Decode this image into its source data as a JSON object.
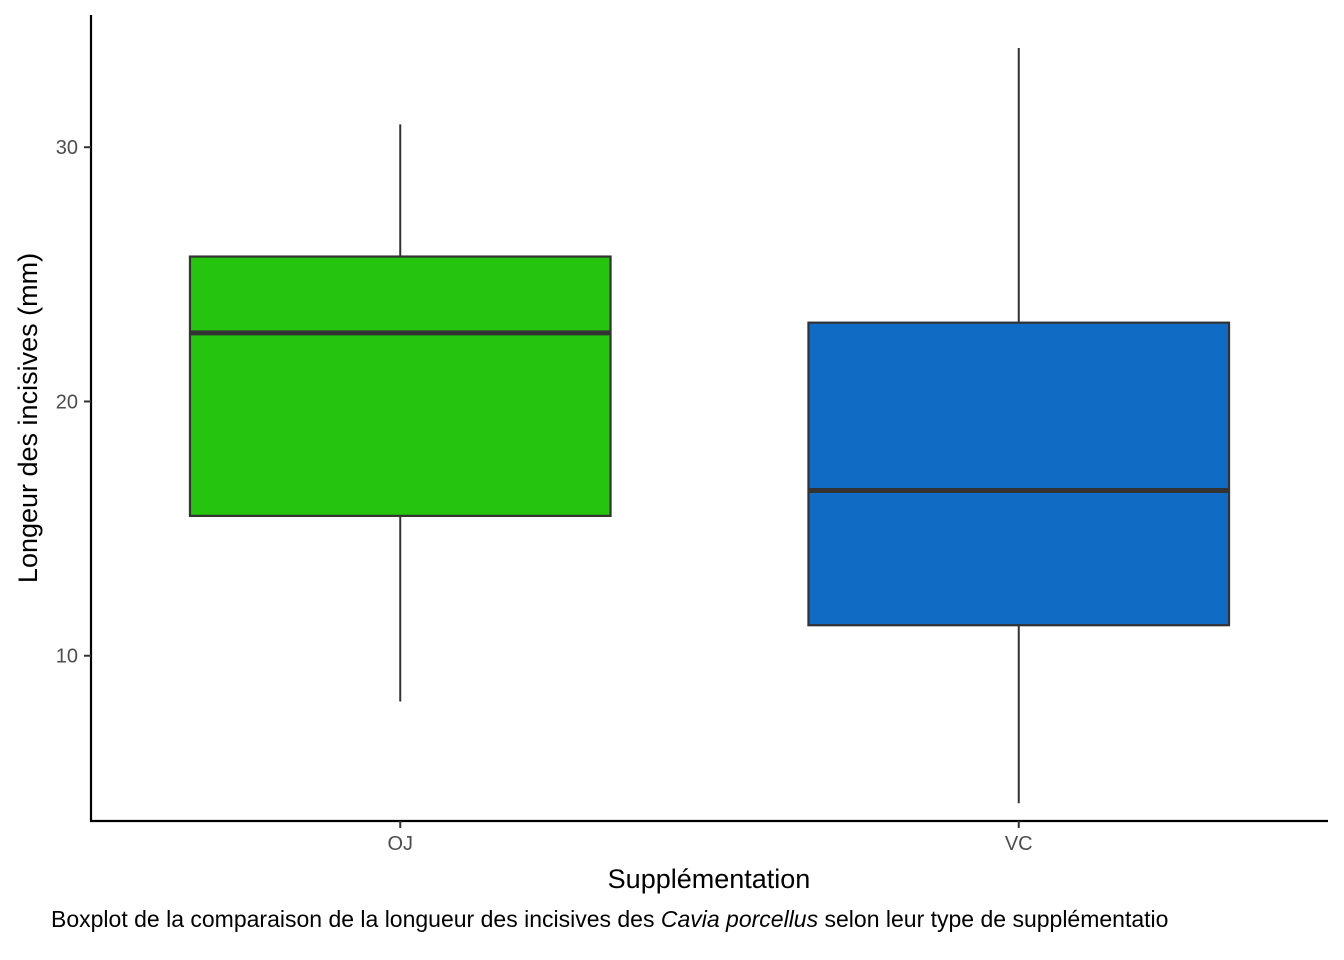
{
  "chart_data": {
    "type": "boxplot",
    "xlabel": "Supplémentation",
    "ylabel": "Longeur des incisives (mm)",
    "ylim": [
      3.5,
      35.2
    ],
    "yticks": [
      10,
      20,
      30
    ],
    "grid": false,
    "legend": "none",
    "categories": [
      "OJ",
      "VC"
    ],
    "boxes": [
      {
        "category": "OJ",
        "lower_whisker": 8.2,
        "q1": 15.5,
        "median": 22.7,
        "q3": 25.7,
        "upper_whisker": 30.9,
        "fill": "#24C40F"
      },
      {
        "category": "VC",
        "lower_whisker": 4.2,
        "q1": 11.2,
        "median": 16.5,
        "q3": 23.1,
        "upper_whisker": 33.9,
        "fill": "#0F6BC4"
      }
    ]
  },
  "caption": {
    "before": "Boxplot de la comparaison de la longueur des incisives des ",
    "species": "Cavia porcellus",
    "after": " selon leur type de supplémentatio"
  },
  "colors": {
    "axis": "#000000",
    "outline": "#333333",
    "tick_text": "#4d4d4d"
  }
}
